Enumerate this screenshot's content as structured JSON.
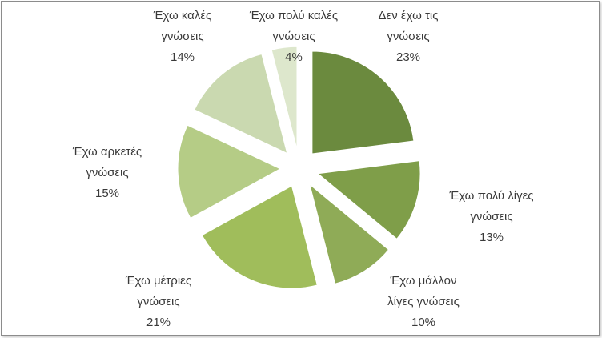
{
  "chart_data": {
    "type": "pie",
    "title": "",
    "exploded": true,
    "slices": [
      {
        "label": "Δεν έχω τις γνώσεις",
        "lines": [
          "Δεν έχω τις",
          "γνώσεις"
        ],
        "value": 23,
        "value_label": "23%",
        "color": "#6b8a3e"
      },
      {
        "label": "Έχω πολύ λίγες γνώσεις",
        "lines": [
          "Έχω πολύ λίγες",
          "γνώσεις"
        ],
        "value": 13,
        "value_label": "13%",
        "color": "#7f9e49"
      },
      {
        "label": "Έχω μάλλον λίγες γνώσεις",
        "lines": [
          "Έχω μάλλον",
          "λίγες γνώσεις"
        ],
        "value": 10,
        "value_label": "10%",
        "color": "#8fab57"
      },
      {
        "label": "Έχω μέτριες γνώσεις",
        "lines": [
          "Έχω μέτριες",
          "γνώσεις"
        ],
        "value": 21,
        "value_label": "21%",
        "color": "#a0bd5b"
      },
      {
        "label": "Έχω αρκετές γνώσεις",
        "lines": [
          "Έχω αρκετές",
          "γνώσεις"
        ],
        "value": 15,
        "value_label": "15%",
        "color": "#b5cc86"
      },
      {
        "label": "Έχω καλές γνώσεις",
        "lines": [
          "Έχω καλές",
          "γνώσεις"
        ],
        "value": 14,
        "value_label": "14%",
        "color": "#cad9b0"
      },
      {
        "label": "Έχω πολύ καλές γνώσεις",
        "lines": [
          "Έχω πολύ καλές",
          "γνώσεις"
        ],
        "value": 4,
        "value_label": "4%",
        "color": "#dde7cc"
      }
    ]
  }
}
